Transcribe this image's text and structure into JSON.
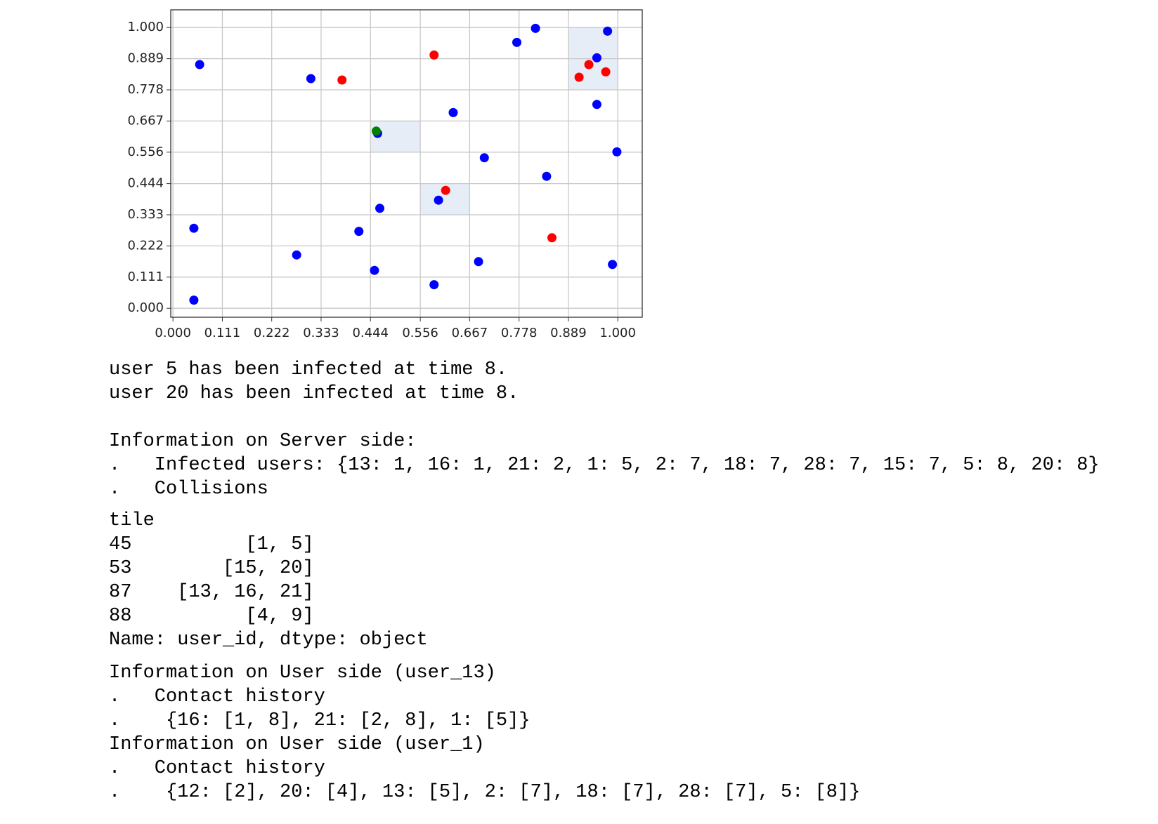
{
  "chart_data": {
    "type": "scatter",
    "xlim": [
      -0.005,
      1.055
    ],
    "ylim": [
      -0.032,
      1.063
    ],
    "xticks": [
      {
        "value": 0,
        "label": "0.000"
      },
      0.111,
      0.222,
      0.333,
      0.444,
      0.556,
      0.667,
      0.778,
      0.889,
      {
        "value": 1,
        "label": "1.000"
      }
    ],
    "yticks": [
      {
        "value": 0,
        "label": "0.000"
      },
      0.111,
      0.222,
      0.333,
      0.444,
      0.556,
      0.667,
      0.778,
      0.889,
      {
        "value": 1,
        "label": "1.000"
      }
    ],
    "grid": true,
    "regions": [
      {
        "x": [
          0.444,
          0.556
        ],
        "y": [
          0.556,
          0.667
        ]
      },
      {
        "x": [
          0.556,
          0.667
        ],
        "y": [
          0.333,
          0.444
        ]
      },
      {
        "x": [
          0.889,
          1.0
        ],
        "y": [
          0.778,
          1.0
        ]
      }
    ],
    "series": [
      {
        "color": "#0000ff",
        "x": [
          0.06,
          0.31,
          0.047,
          0.047,
          0.278,
          0.418,
          0.465,
          0.453,
          0.46,
          0.587,
          0.597,
          0.63,
          0.7,
          0.687,
          0.773,
          0.815,
          0.84,
          0.953,
          0.953,
          0.977,
          0.998,
          0.988
        ],
        "y": [
          0.868,
          0.818,
          0.285,
          0.029,
          0.19,
          0.274,
          0.356,
          0.135,
          0.623,
          0.084,
          0.385,
          0.697,
          0.536,
          0.166,
          0.947,
          0.997,
          0.47,
          0.726,
          0.892,
          0.987,
          0.557,
          0.156
        ]
      },
      {
        "color": "#ff0000",
        "x": [
          0.38,
          0.587,
          0.613,
          0.852,
          0.913,
          0.935,
          0.973
        ],
        "y": [
          0.813,
          0.902,
          0.42,
          0.251,
          0.823,
          0.868,
          0.842
        ]
      },
      {
        "color": "#008000",
        "x": [
          0.457
        ],
        "y": [
          0.631
        ]
      }
    ]
  },
  "output": {
    "log": [
      "user 5 has been infected at time 8.",
      "user 20 has been infected at time 8."
    ],
    "server": [
      "Information on Server side:",
      ".   Infected users: {13: 1, 16: 1, 21: 2, 1: 5, 2: 7, 18: 7, 28: 7, 15: 7, 5: 8, 20: 8}",
      ".   Collisions"
    ],
    "collisions": [
      "tile",
      "45          [1, 5]",
      "53        [15, 20]",
      "87    [13, 16, 21]",
      "88          [4, 9]",
      "Name: user_id, dtype: object"
    ],
    "user_13": [
      "Information on User side (user_13)",
      ".   Contact history",
      ".    {16: [1, 8], 21: [2, 8], 1: [5]}"
    ],
    "user_1": [
      "Information on User side (user_1)",
      ".   Contact history",
      ".    {12: [2], 20: [4], 13: [5], 2: [7], 18: [7], 28: [7], 5: [8]}"
    ]
  }
}
